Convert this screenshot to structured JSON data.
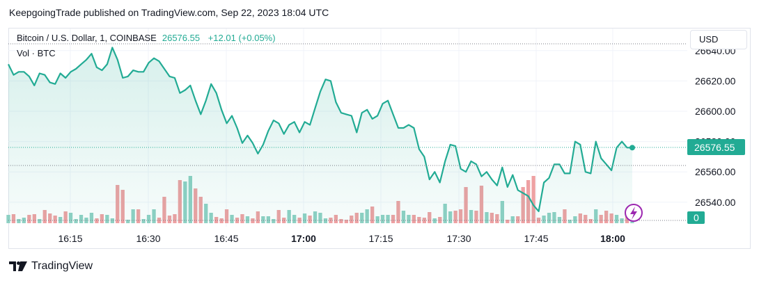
{
  "header": {
    "published": "KeepgoingTrade published on TradingView.com, Sep 22, 2023 18:04 UTC"
  },
  "legend": {
    "symbol": "Bitcoin / U.S. Dollar, 1, COINBASE",
    "price": "26576.55",
    "change": "+12.01 (+0.05%)",
    "volume_label": "Vol · BTC"
  },
  "currency_button": "USD",
  "price_tag": "26576.55",
  "volume_tag": "0",
  "footer": {
    "brand": "TradingView"
  },
  "colors": {
    "line": "#22ab94",
    "up_volume": "#8fd1c4",
    "down_volume": "#eea1a3",
    "grid": "#f0f3fa",
    "accent_purple": "#9c27b0"
  },
  "chart_data": {
    "type": "area",
    "y_ticks": [
      "26540.00",
      "26560.00",
      "26580.00",
      "26600.00",
      "26620.00",
      "26640.00"
    ],
    "x_ticks": [
      "16:15",
      "16:30",
      "16:45",
      "17:00",
      "17:15",
      "17:30",
      "17:45",
      "18:00"
    ],
    "ylim": [
      26530,
      26650
    ],
    "last_price": 26576.55,
    "price_series": [
      26631,
      26624,
      26626,
      26626,
      26623,
      26617,
      26625,
      26624,
      26619,
      26618,
      26625,
      26622,
      26626,
      26628,
      26631,
      26634,
      26638,
      26629,
      26627,
      26631,
      26642,
      26634,
      26622,
      26623,
      26627,
      26626,
      26626,
      26632,
      26635,
      26633,
      26628,
      26623,
      26622,
      26612,
      26614,
      26617,
      26607,
      26598,
      26607,
      26618,
      26612,
      26601,
      26592,
      26597,
      26589,
      26579,
      26584,
      26579,
      26572,
      26578,
      26587,
      26594,
      26592,
      26585,
      26591,
      26593,
      26586,
      26593,
      26591,
      26602,
      26613,
      26621,
      26620,
      26606,
      26599,
      26598,
      26597,
      26586,
      26599,
      26601,
      26595,
      26597,
      26605,
      26607,
      26598,
      26589,
      26589,
      26591,
      26589,
      26575,
      26570,
      26555,
      26560,
      26553,
      26567,
      26578,
      26577,
      26562,
      26560,
      26567,
      26565,
      26557,
      26560,
      26555,
      26551,
      26563,
      26550,
      26558,
      26548,
      26546,
      26544,
      26538,
      26534,
      26553,
      26556,
      26565,
      26565,
      26559,
      26559,
      26580,
      26578,
      26560,
      26559,
      26580,
      26569,
      26565,
      26561,
      26576,
      26580,
      26576,
      26576
    ]
  }
}
